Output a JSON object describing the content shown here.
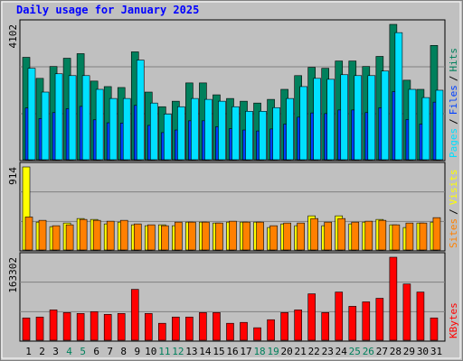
{
  "chart_data": [
    {
      "type": "bar",
      "title": "Daily usage for January 2025",
      "ylim": [
        0,
        4102
      ],
      "yticks": [
        4102
      ],
      "legend_separator": "/",
      "series": [
        {
          "name": "Pages",
          "color": "#00e0ff",
          "values": [
            2762,
            2037,
            2595,
            2539,
            2539,
            2120,
            1841,
            1841,
            3013,
            1702,
            1367,
            1590,
            1841,
            1814,
            1758,
            1590,
            1451,
            1451,
            1562,
            1841,
            2204,
            2455,
            2427,
            2567,
            2539,
            2539,
            2678,
            3850,
            2120,
            1869,
            2093
          ]
        },
        {
          "name": "Files",
          "color": "#0040ff",
          "values": [
            1550,
            1230,
            1410,
            1530,
            1600,
            1190,
            1100,
            1090,
            1630,
            1020,
            800,
            880,
            1160,
            1160,
            980,
            920,
            880,
            850,
            910,
            1060,
            1270,
            1400,
            1380,
            1490,
            1490,
            1410,
            1560,
            2050,
            1200,
            1060,
            1730
          ]
        },
        {
          "name": "Hits",
          "color": "#00805c",
          "values": [
            3097,
            2455,
            2818,
            3069,
            3209,
            2372,
            2204,
            2176,
            3264,
            2037,
            1590,
            1758,
            2316,
            2316,
            1953,
            1841,
            1758,
            1702,
            1814,
            2120,
            2539,
            2790,
            2762,
            2985,
            2985,
            2818,
            3125,
            4102,
            2399,
            2120,
            3460
          ]
        }
      ]
    },
    {
      "type": "bar",
      "ylim": [
        0,
        914
      ],
      "yticks": [
        914
      ],
      "legend_separator": "/",
      "series": [
        {
          "name": "Sites",
          "color": "#ff8000",
          "values": [
            357,
            320,
            260,
            270,
            330,
            320,
            310,
            320,
            280,
            270,
            260,
            300,
            300,
            300,
            290,
            310,
            300,
            300,
            260,
            290,
            290,
            340,
            300,
            340,
            300,
            310,
            320,
            270,
            290,
            290,
            350
          ]
        },
        {
          "name": "Visits",
          "color": "#ffff00",
          "values": [
            914,
            300,
            250,
            290,
            340,
            330,
            280,
            300,
            270,
            260,
            270,
            260,
            300,
            300,
            290,
            300,
            300,
            300,
            240,
            280,
            260,
            370,
            260,
            370,
            280,
            300,
            330,
            270,
            240,
            290,
            300
          ]
        }
      ]
    },
    {
      "type": "bar",
      "ylim": [
        0,
        163302
      ],
      "yticks": [
        163302
      ],
      "categories": [
        "1",
        "2",
        "3",
        "4",
        "5",
        "6",
        "7",
        "8",
        "9",
        "10",
        "11",
        "12",
        "13",
        "14",
        "15",
        "16",
        "17",
        "18",
        "19",
        "20",
        "21",
        "22",
        "23",
        "24",
        "25",
        "26",
        "27",
        "28",
        "29",
        "30",
        "31"
      ],
      "category_colors": [
        "#000000",
        "#000000",
        "#000000",
        "#00805c",
        "#00805c",
        "#000000",
        "#000000",
        "#000000",
        "#000000",
        "#000000",
        "#00805c",
        "#00805c",
        "#000000",
        "#000000",
        "#000000",
        "#000000",
        "#000000",
        "#00805c",
        "#00805c",
        "#000000",
        "#000000",
        "#000000",
        "#000000",
        "#000000",
        "#00805c",
        "#00805c",
        "#000000",
        "#000000",
        "#000000",
        "#000000",
        "#000000"
      ],
      "series": [
        {
          "name": "KBytes",
          "color": "#ff0000",
          "values": [
            42600,
            44375,
            58575,
            53250,
            51475,
            55025,
            49700,
            51475,
            99400,
            51475,
            31950,
            44375,
            44375,
            53250,
            53250,
            31950,
            33725,
            23075,
            39050,
            53250,
            58575,
            90525,
            53250,
            94075,
            65675,
            74550,
            81650,
            163302,
            110050,
            94075,
            42600
          ]
        }
      ]
    }
  ]
}
